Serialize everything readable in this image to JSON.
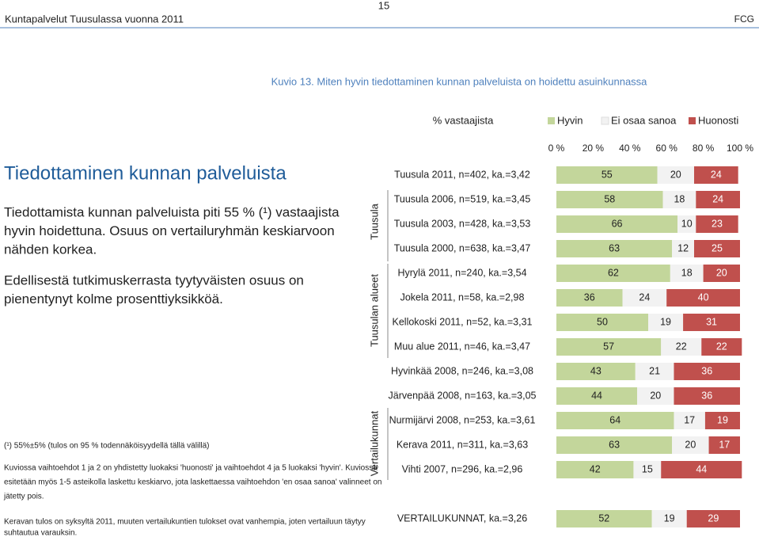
{
  "header": {
    "title": "Kuntapalvelut Tuusulassa vuonna 2011",
    "page": "15",
    "org": "FCG"
  },
  "left": {
    "heading": "Tiedottaminen kunnan palveluista",
    "paragraph1": [
      "Tiedottamista kunnan palveluista piti 55 % (¹) vastaajista",
      "hyvin hoidettuna. Osuus on vertailuryhmän keskiarvoon",
      "nähden korkea."
    ],
    "paragraph2": [
      "Edellisestä tutkimuskerrasta tyytyväisten osuus on",
      "pienentynyt  kolme prosenttiyksikköä."
    ],
    "note1": "(¹) 55%±5% (tulos on 95 % todennäköisyydellä tällä välillä)",
    "note2": [
      "Kuviossa vaihtoehdot 1 ja 2 on yhdistetty luokaksi 'huonosti' ja vaihtoehdot 4 ja 5 luokaksi 'hyvin'. Kuviossa",
      "esitetään myös 1-5 asteikolla laskettu keskiarvo, jota laskettaessa vaihtoehdon 'en osaa sanoa' valinneet on",
      "jätetty pois."
    ],
    "note3": [
      "Keravan tulos on syksyltä 2011, muuten vertailukuntien tulokset ovat vanhempia, joten vertailuun täytyy",
      "suhtautua varauksin."
    ]
  },
  "chart_data": {
    "type": "stacked-bar-horizontal",
    "title": "Kuvio 13. Miten hyvin tiedottaminen kunnan palveluista on hoidettu asuinkunnassa",
    "xlabel": "% vastaajista",
    "xlim": [
      0,
      100
    ],
    "xticks": [
      {
        "value": 0,
        "label": "0 %"
      },
      {
        "value": 20,
        "label": "20 %"
      },
      {
        "value": 40,
        "label": "40 %"
      },
      {
        "value": 60,
        "label": "60 %"
      },
      {
        "value": 80,
        "label": "80 %"
      },
      {
        "value": 100,
        "label": "100 %"
      }
    ],
    "groups": [
      "Tuusula",
      "Tuusulan alueet",
      "Vertailukunnat"
    ],
    "categories": [
      "Tuusula 2011, n=402, ka.=3,42",
      "Tuusula 2006, n=519, ka.=3,45",
      "Tuusula 2003, n=428, ka.=3,53",
      "Tuusula 2000, n=638, ka.=3,47",
      "Hyrylä 2011, n=240, ka.=3,54",
      "Jokela 2011, n=58, ka.=2,98",
      "Kellokoski 2011, n=52, ka.=3,31",
      "Muu alue 2011, n=46, ka.=3,47",
      "Hyvinkää 2008, n=246, ka.=3,08",
      "Järvenpää 2008, n=163, ka.=3,05",
      "Nurmijärvi 2008, n=253, ka.=3,61",
      "Kerava 2011, n=311, ka.=3,63",
      "Vihti 2007, n=296, ka.=2,96",
      "VERTAILUKUNNAT, ka.=3,26"
    ],
    "series": [
      {
        "name": "Hyvin",
        "color": "#c3d69b",
        "label_color": "#222222",
        "values": [
          55,
          58,
          66,
          63,
          62,
          36,
          50,
          57,
          43,
          44,
          64,
          63,
          42,
          52
        ]
      },
      {
        "name": "Ei osaa sanoa",
        "color": "#f2f2f2",
        "label_color": "#222222",
        "values": [
          20,
          18,
          10,
          12,
          18,
          24,
          19,
          22,
          21,
          20,
          17,
          20,
          15,
          19
        ]
      },
      {
        "name": "Huonosti",
        "color": "#c0504d",
        "label_color": "#ffffff",
        "values": [
          24,
          24,
          23,
          25,
          20,
          40,
          31,
          22,
          36,
          36,
          19,
          17,
          44,
          29
        ]
      }
    ]
  }
}
